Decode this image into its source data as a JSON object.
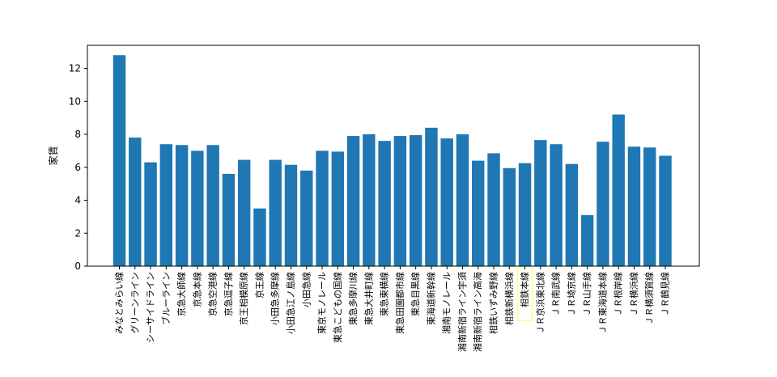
{
  "colors": {
    "bar": "#1f77b4",
    "highlight": "#ffff99"
  },
  "chart_data": {
    "type": "bar",
    "ylabel": "家賃",
    "ylim": [
      0,
      13.4
    ],
    "yticks": [
      0,
      2,
      4,
      6,
      8,
      10,
      12
    ],
    "grid": false,
    "highlighted_category": "相鉄本線",
    "categories": [
      "みなとみらい線",
      "グリーンライン",
      "シーサイドライン",
      "ブルーライン",
      "京急大師線",
      "京急本線",
      "京急空港線",
      "京急逗子線",
      "京王相模原線",
      "京王線",
      "小田急多摩線",
      "小田急江ノ島線",
      "小田急線",
      "東京モノレール",
      "東急こどもの国線",
      "東急多摩川線",
      "東急大井町線",
      "東急東横線",
      "東急田園都市線",
      "東急目黒線",
      "東海道新幹線",
      "湘南モノレール",
      "湘南新宿ライン宇須",
      "湘南新宿ライン高海",
      "相鉄いずみ野線",
      "相鉄新横浜線",
      "相鉄本線",
      "ＪＲ京浜東北線",
      "ＪＲ南武線",
      "ＪＲ埼京線",
      "ＪＲ山手線",
      "ＪＲ東海道本線",
      "ＪＲ根岸線",
      "ＪＲ横浜線",
      "ＪＲ横須賀線",
      "ＪＲ鶴見線"
    ],
    "values": [
      12.8,
      7.8,
      6.3,
      7.4,
      7.35,
      7.0,
      7.35,
      5.6,
      6.45,
      3.5,
      6.45,
      6.15,
      5.8,
      7.0,
      6.95,
      7.9,
      8.0,
      7.6,
      7.9,
      7.95,
      8.4,
      7.75,
      8.0,
      6.4,
      6.85,
      5.95,
      6.25,
      7.65,
      7.4,
      6.2,
      3.1,
      7.55,
      9.2,
      7.25,
      7.2,
      6.7
    ]
  }
}
